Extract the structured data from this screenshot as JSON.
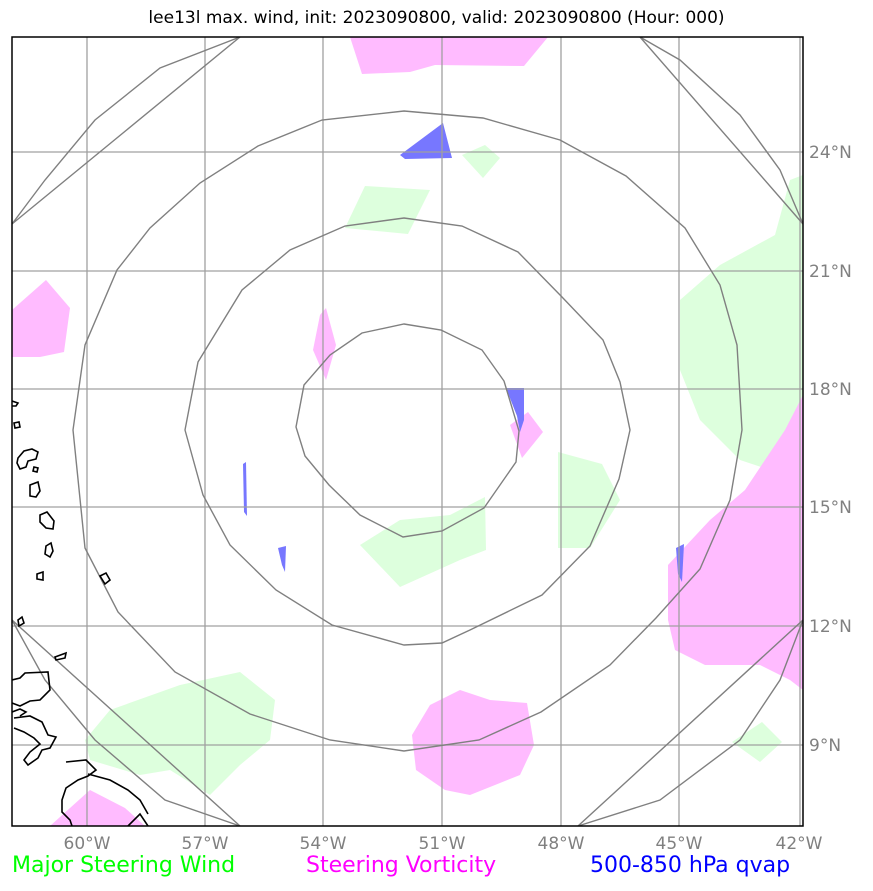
{
  "title": "lee13l max. wind, init: 2023090800, valid: 2023090800 (Hour: 000)",
  "axes": {
    "lat_labels": [
      "24°N",
      "21°N",
      "18°N",
      "15°N",
      "12°N",
      "9°N"
    ],
    "lon_labels": [
      "60°W",
      "57°W",
      "54°W",
      "51°W",
      "48°W",
      "45°W",
      "42°W"
    ]
  },
  "legend": {
    "wind": {
      "label": "Major Steering Wind",
      "color": "#00ff00"
    },
    "vorticity": {
      "label": "Steering Vorticity",
      "color": "#ff00ff"
    },
    "qvap": {
      "label": "500-850 hPa qvap",
      "color": "#0000ff"
    }
  },
  "colors": {
    "wind_fill": "#ddffdd",
    "vort_fill": "#ffbbff",
    "qvap_fill": "#7777ff",
    "grid": "#a0a0a0",
    "rings": "#808080",
    "coast": "#000000"
  }
}
